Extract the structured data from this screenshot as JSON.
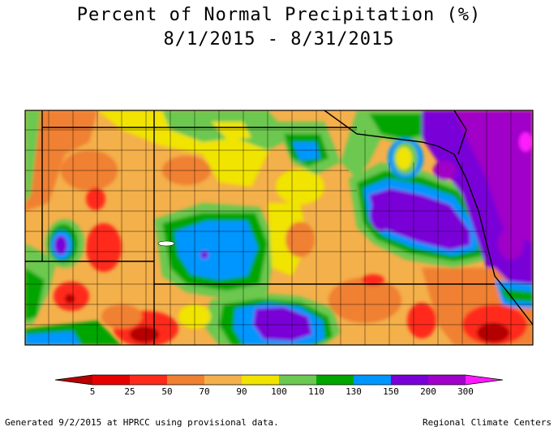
{
  "title": "Percent of Normal Precipitation (%)",
  "period": "8/1/2015 - 8/31/2015",
  "legend": {
    "ticks": [
      "5",
      "25",
      "50",
      "70",
      "90",
      "100",
      "110",
      "130",
      "150",
      "200",
      "300"
    ],
    "colors": [
      "#b40000",
      "#e60000",
      "#ff2a1a",
      "#f08032",
      "#f4b04a",
      "#f0e400",
      "#6cc850",
      "#00a500",
      "#0096ff",
      "#7a00d8",
      "#a000c8",
      "#ff1aff"
    ]
  },
  "footer": {
    "generated": "Generated 9/2/2015 at HPRCC using provisional data.",
    "source": "Regional Climate Centers"
  }
}
